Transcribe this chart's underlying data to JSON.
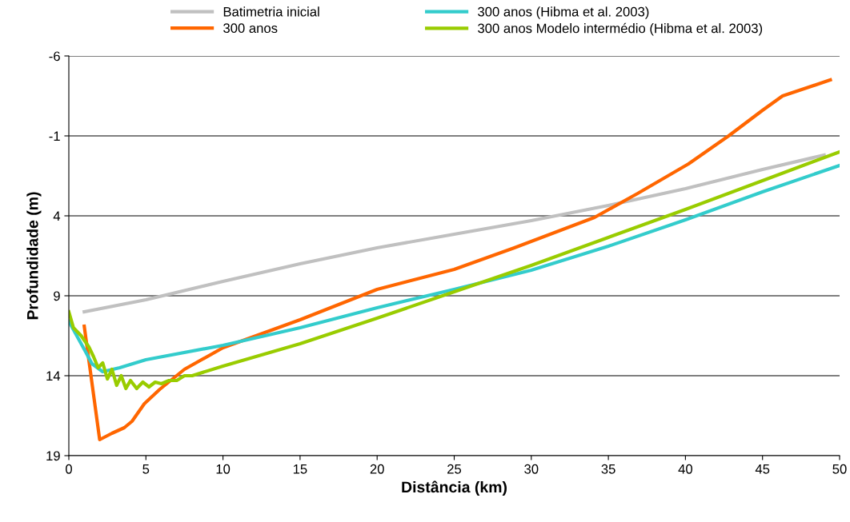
{
  "chart_data": {
    "type": "line",
    "xlabel": "Distância (km)",
    "ylabel": "Profundidade (m)",
    "xlim": [
      0,
      50
    ],
    "xticks": [
      0,
      5,
      10,
      15,
      20,
      25,
      30,
      35,
      40,
      45,
      50
    ],
    "ylim": [
      19,
      -6
    ],
    "yticks": [
      -6,
      -1,
      4,
      9,
      14,
      19
    ],
    "grid": "y",
    "legend": "top",
    "line_style": "solid",
    "marker": "none",
    "series": [
      {
        "name": "Batimetria inicial",
        "color": "#c0c0c0",
        "x": [
          1,
          5,
          10,
          15,
          20,
          25,
          30,
          35,
          40,
          45,
          49
        ],
        "values": [
          10.0,
          9.25,
          8.1,
          7.0,
          6.0,
          5.15,
          4.3,
          3.35,
          2.3,
          1.1,
          0.2
        ]
      },
      {
        "name": "300 anos",
        "color": "#ff6600",
        "x": [
          1,
          2,
          2.8,
          3.6,
          4.1,
          4.9,
          5.9,
          7.5,
          10,
          15,
          20,
          25,
          28.9,
          34.1,
          36.9,
          40.2,
          42.8,
          45,
          46.3,
          49.4
        ],
        "values": [
          10.9,
          18.0,
          17.6,
          17.25,
          16.85,
          15.75,
          14.85,
          13.6,
          12.25,
          10.5,
          8.6,
          7.35,
          6.0,
          4.1,
          2.6,
          0.75,
          -1.0,
          -2.6,
          -3.5,
          -4.5
        ]
      },
      {
        "name": "300 anos (Hibma et al. 2003)",
        "color": "#33cccc",
        "x": [
          0,
          1,
          1.5,
          2.2,
          3.3,
          5,
          10,
          15,
          20,
          25,
          30,
          35,
          40,
          45,
          50
        ],
        "values": [
          10.6,
          12.35,
          13.25,
          13.75,
          13.5,
          13.0,
          12.1,
          11.0,
          9.75,
          8.6,
          7.4,
          5.9,
          4.25,
          2.5,
          0.85
        ]
      },
      {
        "name": "300 anos Modelo intermédio (Hibma et al. 2003)",
        "color": "#99cc00",
        "x": [
          0,
          0.3,
          0.8,
          1.3,
          1.6,
          1.9,
          2.2,
          2.5,
          2.8,
          3.1,
          3.4,
          3.7,
          4.0,
          4.4,
          4.8,
          5.2,
          5.6,
          6.0,
          6.5,
          7.0,
          7.5,
          8,
          10,
          15,
          20,
          25,
          30,
          35,
          40,
          45,
          50
        ],
        "values": [
          10.0,
          11.0,
          11.5,
          12.2,
          12.8,
          13.5,
          13.2,
          14.2,
          13.6,
          14.6,
          14.0,
          14.8,
          14.3,
          14.8,
          14.4,
          14.7,
          14.4,
          14.5,
          14.3,
          14.3,
          14.0,
          14.0,
          13.4,
          12.0,
          10.4,
          8.75,
          7.1,
          5.35,
          3.6,
          1.8,
          0.0
        ]
      }
    ]
  }
}
